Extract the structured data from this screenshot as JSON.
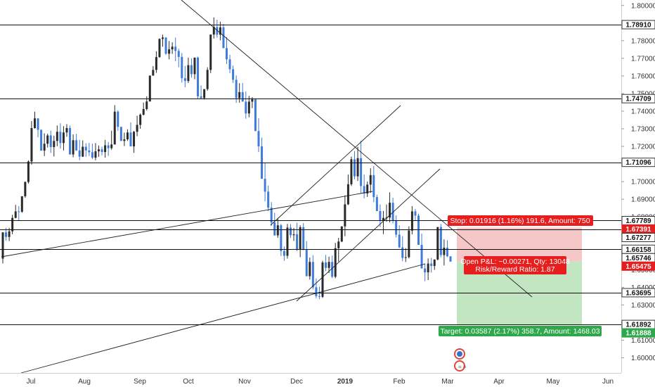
{
  "chart_data": {
    "type": "candlestick",
    "instrument_note": "",
    "y_axis": {
      "ylim": [
        1.593,
        1.8015
      ],
      "ticks": [
        "1.60000",
        "1.61000",
        "1.62000",
        "1.63000",
        "1.64000",
        "1.65000",
        "1.66000",
        "1.67000",
        "1.68000",
        "1.69000",
        "1.70000",
        "1.71000",
        "1.72000",
        "1.73000",
        "1.74000",
        "1.75000",
        "1.76000",
        "1.77000",
        "1.78000",
        "1.79000",
        "1.80000"
      ]
    },
    "x_axis": {
      "labels": [
        "Jul",
        "Aug",
        "Sep",
        "Oct",
        "Nov",
        "Dec",
        "2019",
        "Feb",
        "Mar",
        "Apr",
        "May",
        "Jun"
      ]
    },
    "levels": [
      "1.78910",
      "1.74709",
      "1.71096",
      "1.67789",
      "1.67391",
      "1.67277",
      "1.66158",
      "1.65746",
      "1.65475",
      "1.63695",
      "1.61892",
      "1.61888"
    ],
    "position": {
      "stop_label": "Stop: 0.01916 (1.16%) 191.6, Amount: 750",
      "pnl_label": "Open P&L: −0.00271, Qty: 13048",
      "rr_label": "Risk/Reward Ratio: 1.87",
      "target_label": "Target: 0.03587 (2.17%) 358.7, Amount: 1468.03",
      "entry": 1.65475,
      "stop": 1.67391,
      "target": 1.61888
    },
    "colors": {
      "up": "#2a2a2a",
      "down": "#3f7bd8",
      "stop_zone": "#f6c7c7",
      "target_zone": "#c2e6c2",
      "stop_tag": "#e61e1e",
      "target_tag": "#2ea84a",
      "line": "#111111"
    },
    "candles": [
      [
        1.6563,
        1.6712,
        1.6535,
        1.6712
      ],
      [
        1.6712,
        1.6738,
        1.6665,
        1.6686
      ],
      [
        1.6686,
        1.6738,
        1.6663,
        1.6718
      ],
      [
        1.6718,
        1.6812,
        1.6701,
        1.6794
      ],
      [
        1.6794,
        1.6868,
        1.6792,
        1.6831
      ],
      [
        1.6831,
        1.6861,
        1.6778,
        1.6829
      ],
      [
        1.6829,
        1.6917,
        1.6823,
        1.6917
      ],
      [
        1.6917,
        1.7001,
        1.6908,
        1.6998
      ],
      [
        1.6998,
        1.7121,
        1.6989,
        1.7114
      ],
      [
        1.7114,
        1.7344,
        1.7096,
        1.7304
      ],
      [
        1.7304,
        1.7397,
        1.7301,
        1.7359
      ],
      [
        1.7359,
        1.7359,
        1.7251,
        1.7294
      ],
      [
        1.7294,
        1.7296,
        1.7176,
        1.7176
      ],
      [
        1.7176,
        1.7274,
        1.7145,
        1.7215
      ],
      [
        1.7215,
        1.7272,
        1.7194,
        1.7262
      ],
      [
        1.7262,
        1.7289,
        1.7163,
        1.7196
      ],
      [
        1.7196,
        1.7261,
        1.7143,
        1.7231
      ],
      [
        1.7231,
        1.7319,
        1.7201,
        1.7283
      ],
      [
        1.7283,
        1.7331,
        1.7187,
        1.7219
      ],
      [
        1.7219,
        1.7315,
        1.7177,
        1.7279
      ],
      [
        1.7279,
        1.7326,
        1.7255,
        1.7304
      ],
      [
        1.7304,
        1.7318,
        1.7154,
        1.7154
      ],
      [
        1.7154,
        1.7268,
        1.7138,
        1.7235
      ],
      [
        1.7235,
        1.7271,
        1.7174,
        1.7177
      ],
      [
        1.7177,
        1.7237,
        1.7122,
        1.7142
      ],
      [
        1.7142,
        1.7234,
        1.714,
        1.7198
      ],
      [
        1.7198,
        1.7218,
        1.7141,
        1.7177
      ],
      [
        1.7177,
        1.722,
        1.7145,
        1.7167
      ],
      [
        1.7167,
        1.7216,
        1.7128,
        1.7136
      ],
      [
        1.7136,
        1.7219,
        1.7121,
        1.7172
      ],
      [
        1.7172,
        1.7205,
        1.7141,
        1.7183
      ],
      [
        1.7183,
        1.7198,
        1.7149,
        1.7168
      ],
      [
        1.7168,
        1.7237,
        1.7136,
        1.7206
      ],
      [
        1.7206,
        1.7225,
        1.7146,
        1.719
      ],
      [
        1.719,
        1.7289,
        1.7181,
        1.7211
      ],
      [
        1.7211,
        1.7434,
        1.7211,
        1.7397
      ],
      [
        1.7397,
        1.7405,
        1.7289,
        1.7311
      ],
      [
        1.7311,
        1.7311,
        1.7231,
        1.7231
      ],
      [
        1.7231,
        1.7278,
        1.7202,
        1.724
      ],
      [
        1.724,
        1.7297,
        1.7231,
        1.7279
      ],
      [
        1.7279,
        1.7336,
        1.72,
        1.72
      ],
      [
        1.72,
        1.7288,
        1.7163,
        1.7283
      ],
      [
        1.7283,
        1.7374,
        1.7258,
        1.7322
      ],
      [
        1.7322,
        1.7387,
        1.73,
        1.738
      ],
      [
        1.738,
        1.7449,
        1.7375,
        1.7412
      ],
      [
        1.7412,
        1.7484,
        1.7403,
        1.7455
      ],
      [
        1.7455,
        1.7602,
        1.7455,
        1.7602
      ],
      [
        1.7602,
        1.7656,
        1.7601,
        1.7634
      ],
      [
        1.7634,
        1.774,
        1.7617,
        1.7707
      ],
      [
        1.7707,
        1.7813,
        1.7703,
        1.781
      ],
      [
        1.781,
        1.7834,
        1.7766,
        1.7818
      ],
      [
        1.7818,
        1.782,
        1.772,
        1.7726
      ],
      [
        1.7726,
        1.7798,
        1.7694,
        1.7751
      ],
      [
        1.7751,
        1.7791,
        1.7725,
        1.7766
      ],
      [
        1.7766,
        1.7818,
        1.7684,
        1.7742
      ],
      [
        1.7742,
        1.7755,
        1.7649,
        1.7708
      ],
      [
        1.7708,
        1.7731,
        1.7562,
        1.7587
      ],
      [
        1.7587,
        1.7657,
        1.7536,
        1.7571
      ],
      [
        1.7571,
        1.7704,
        1.756,
        1.7661
      ],
      [
        1.7661,
        1.7699,
        1.759,
        1.761
      ],
      [
        1.761,
        1.7704,
        1.7581,
        1.7704
      ],
      [
        1.7704,
        1.7709,
        1.7471,
        1.7484
      ],
      [
        1.7484,
        1.7546,
        1.7472,
        1.7474
      ],
      [
        1.7474,
        1.7525,
        1.7466,
        1.7525
      ],
      [
        1.7525,
        1.7649,
        1.7516,
        1.7634
      ],
      [
        1.7634,
        1.7835,
        1.7616,
        1.7835
      ],
      [
        1.7835,
        1.7932,
        1.7812,
        1.7878
      ],
      [
        1.7878,
        1.7919,
        1.7817,
        1.7834
      ],
      [
        1.7834,
        1.7908,
        1.7802,
        1.7876
      ],
      [
        1.7876,
        1.7895,
        1.7758,
        1.7758
      ],
      [
        1.7758,
        1.7821,
        1.7667,
        1.7694
      ],
      [
        1.7694,
        1.772,
        1.7616,
        1.7638
      ],
      [
        1.7638,
        1.7659,
        1.756,
        1.7578
      ],
      [
        1.7578,
        1.7603,
        1.7447,
        1.7474
      ],
      [
        1.7474,
        1.7559,
        1.7448,
        1.7508
      ],
      [
        1.7508,
        1.756,
        1.7454,
        1.7454
      ],
      [
        1.7454,
        1.7512,
        1.7357,
        1.7387
      ],
      [
        1.7387,
        1.7487,
        1.7365,
        1.7454
      ],
      [
        1.7454,
        1.748,
        1.7417,
        1.7467
      ],
      [
        1.7467,
        1.7472,
        1.7287,
        1.7287
      ],
      [
        1.7287,
        1.736,
        1.7167,
        1.72
      ],
      [
        1.72,
        1.725,
        1.7016,
        1.7016
      ],
      [
        1.7016,
        1.7108,
        1.6888,
        1.6943
      ],
      [
        1.6943,
        1.6978,
        1.6832,
        1.6852
      ],
      [
        1.6852,
        1.6884,
        1.6749,
        1.6768
      ],
      [
        1.6768,
        1.6823,
        1.6693,
        1.6695
      ],
      [
        1.6695,
        1.6793,
        1.6681,
        1.6752
      ],
      [
        1.6752,
        1.676,
        1.6578,
        1.6606
      ],
      [
        1.6606,
        1.6632,
        1.655,
        1.6579
      ],
      [
        1.6579,
        1.676,
        1.6563,
        1.6739
      ],
      [
        1.6739,
        1.6759,
        1.668,
        1.6696
      ],
      [
        1.6696,
        1.6737,
        1.6663,
        1.6701
      ],
      [
        1.6701,
        1.6766,
        1.6605,
        1.6614
      ],
      [
        1.6614,
        1.6752,
        1.6571,
        1.6741
      ],
      [
        1.6741,
        1.6765,
        1.661,
        1.6614
      ],
      [
        1.6614,
        1.6662,
        1.6463,
        1.6463
      ],
      [
        1.6463,
        1.6569,
        1.6444,
        1.6544
      ],
      [
        1.6544,
        1.6582,
        1.6388,
        1.64
      ],
      [
        1.64,
        1.645,
        1.6338,
        1.635
      ],
      [
        1.635,
        1.6404,
        1.6333,
        1.6346
      ],
      [
        1.6346,
        1.6551,
        1.634,
        1.6541
      ],
      [
        1.6541,
        1.6584,
        1.6493,
        1.651
      ],
      [
        1.651,
        1.6574,
        1.6481,
        1.6544
      ],
      [
        1.6544,
        1.658,
        1.6452,
        1.646
      ],
      [
        1.646,
        1.6652,
        1.6451,
        1.6622
      ],
      [
        1.6622,
        1.6681,
        1.6546,
        1.666
      ],
      [
        1.666,
        1.6746,
        1.6656,
        1.6746
      ],
      [
        1.6746,
        1.6922,
        1.669,
        1.6871
      ],
      [
        1.6871,
        1.704,
        1.6867,
        1.6985
      ],
      [
        1.6985,
        1.7142,
        1.6975,
        1.7127
      ],
      [
        1.7127,
        1.7173,
        1.7013,
        1.703
      ],
      [
        1.703,
        1.7198,
        1.7004,
        1.7133
      ],
      [
        1.7133,
        1.7233,
        1.6935,
        1.6975
      ],
      [
        1.6975,
        1.704,
        1.6905,
        1.6933
      ],
      [
        1.6933,
        1.7,
        1.6913,
        1.6983
      ],
      [
        1.6983,
        1.7076,
        1.6936,
        1.7037
      ],
      [
        1.7037,
        1.7089,
        1.6883,
        1.6912
      ],
      [
        1.6912,
        1.6926,
        1.6833,
        1.6833
      ],
      [
        1.6833,
        1.687,
        1.6743,
        1.6777
      ],
      [
        1.6777,
        1.6834,
        1.6702,
        1.6794
      ],
      [
        1.6794,
        1.687,
        1.6772,
        1.6796
      ],
      [
        1.6796,
        1.6939,
        1.6768,
        1.688
      ],
      [
        1.688,
        1.6909,
        1.6763,
        1.678
      ],
      [
        1.678,
        1.6809,
        1.6683,
        1.6699
      ],
      [
        1.6699,
        1.6752,
        1.6622,
        1.6627
      ],
      [
        1.6627,
        1.6691,
        1.6548,
        1.6567
      ],
      [
        1.6567,
        1.6623,
        1.6544,
        1.6571
      ],
      [
        1.6571,
        1.6746,
        1.6564,
        1.6722
      ],
      [
        1.6722,
        1.6861,
        1.6701,
        1.6831
      ],
      [
        1.6831,
        1.6845,
        1.6777,
        1.6807
      ],
      [
        1.6807,
        1.6818,
        1.6641,
        1.6641
      ],
      [
        1.6641,
        1.6705,
        1.6507,
        1.6507
      ],
      [
        1.6507,
        1.6536,
        1.6435,
        1.6485
      ],
      [
        1.6485,
        1.6564,
        1.6441,
        1.6535
      ],
      [
        1.6535,
        1.6567,
        1.6484,
        1.6521
      ],
      [
        1.6521,
        1.6558,
        1.6499,
        1.6558
      ],
      [
        1.6558,
        1.6742,
        1.6553,
        1.6742
      ],
      [
        1.6742,
        1.6759,
        1.657,
        1.6583
      ],
      [
        1.6583,
        1.6672,
        1.6524,
        1.6625
      ],
      [
        1.6625,
        1.6667,
        1.6571,
        1.6576
      ],
      [
        1.6576,
        1.6576,
        1.6546,
        1.6546
      ]
    ]
  }
}
